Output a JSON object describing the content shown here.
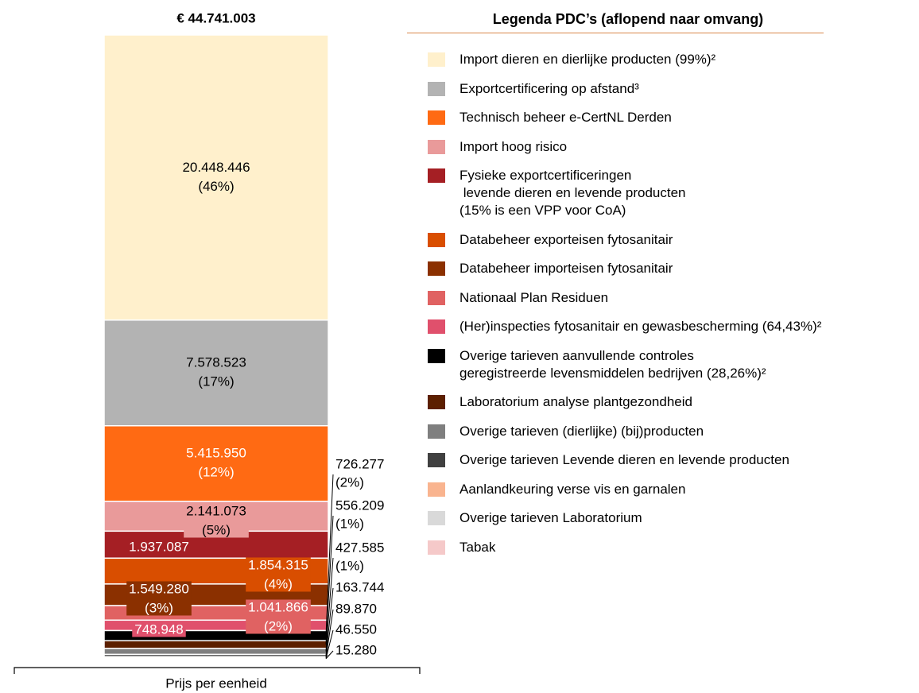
{
  "chart_data": {
    "type": "stacked_bar",
    "title": "€ 44.741.003",
    "x_label": "Prijs per eenheid",
    "legend_title": "Legenda PDC’s (aflopend naar omvang)",
    "series": [
      {
        "name": "Import dieren en dierlijke producten (99%)²",
        "color": "#fff0cc",
        "values": [
          20448446
        ],
        "value_labels": [
          "20.448.446"
        ],
        "share_labels": [
          "(46%)"
        ]
      },
      {
        "name": "Exportcertificering op afstand³",
        "color": "#b3b3b3",
        "values": [
          7578523
        ],
        "value_labels": [
          "7.578.523"
        ],
        "share_labels": [
          "(17%)"
        ]
      },
      {
        "name": "Technisch beheer e-CertNL Derden",
        "color": "#ff6a13",
        "values": [
          5415950
        ],
        "value_labels": [
          "5.415.950"
        ],
        "share_labels": [
          "(12%)"
        ]
      },
      {
        "name": "Import hoog risico",
        "color": "#e99a9a",
        "values": [
          2141073
        ],
        "value_labels": [
          "2.141.073"
        ],
        "share_labels": [
          "(5%)"
        ]
      },
      {
        "name": "Fysieke exportcertificeringen\n levende dieren en levende producten\n(15% is een VPP voor CoA)",
        "color": "#a51f24",
        "values": [
          1937087
        ],
        "value_labels": [
          "1.937.087"
        ],
        "share_labels": [
          null
        ]
      },
      {
        "name": "Databeheer exporteisen fytosanitair",
        "color": "#d94e00",
        "values": [
          1854315
        ],
        "value_labels": [
          "1.854.315"
        ],
        "share_labels": [
          "(4%)"
        ]
      },
      {
        "name": "Databeheer importeisen fytosanitair",
        "color": "#8b3000",
        "values": [
          1549280
        ],
        "value_labels": [
          "1.549.280"
        ],
        "share_labels": [
          "(3%)"
        ]
      },
      {
        "name": "Nationaal Plan Residuen",
        "color": "#e06262",
        "values": [
          1041866
        ],
        "value_labels": [
          "1.041.866"
        ],
        "share_labels": [
          "(2%)"
        ]
      },
      {
        "name": "(Her)inspecties fytosanitair en gewasbescherming (64,43%)²",
        "color": "#e0506c",
        "values": [
          748948
        ],
        "value_labels": [
          "748.948"
        ],
        "share_labels": [
          null
        ]
      },
      {
        "name": "Overige tarieven aanvullende controles\ngeregistreerde levensmiddelen bedrijven (28,26%)²",
        "color": "#000000",
        "values": [
          726277
        ],
        "value_labels": [
          "726.277"
        ],
        "share_labels": [
          "(2%)"
        ]
      },
      {
        "name": "Laboratorium analyse plantgezondheid",
        "color": "#5c1f00",
        "values": [
          556209
        ],
        "value_labels": [
          "556.209"
        ],
        "share_labels": [
          "(1%)"
        ]
      },
      {
        "name": "Overige tarieven (dierlijke) (bij)producten",
        "color": "#7f7f7f",
        "values": [
          427585
        ],
        "value_labels": [
          "427.585"
        ],
        "share_labels": [
          "(1%)"
        ]
      },
      {
        "name": "Overige tarieven Levende dieren en levende producten",
        "color": "#404040",
        "values": [
          163744
        ],
        "value_labels": [
          "163.744"
        ],
        "share_labels": [
          null
        ]
      },
      {
        "name": "Aanlandkeuring verse vis en garnalen",
        "color": "#f9b48f",
        "values": [
          89870
        ],
        "value_labels": [
          "89.870"
        ],
        "share_labels": [
          null
        ]
      },
      {
        "name": "Overige tarieven Laboratorium",
        "color": "#d9d9d9",
        "values": [
          46550
        ],
        "value_labels": [
          "46.550"
        ],
        "share_labels": [
          null
        ]
      },
      {
        "name": "Tabak",
        "color": "#f5c9c9",
        "values": [
          15280
        ],
        "value_labels": [
          "15.280"
        ],
        "share_labels": [
          null
        ]
      }
    ]
  }
}
